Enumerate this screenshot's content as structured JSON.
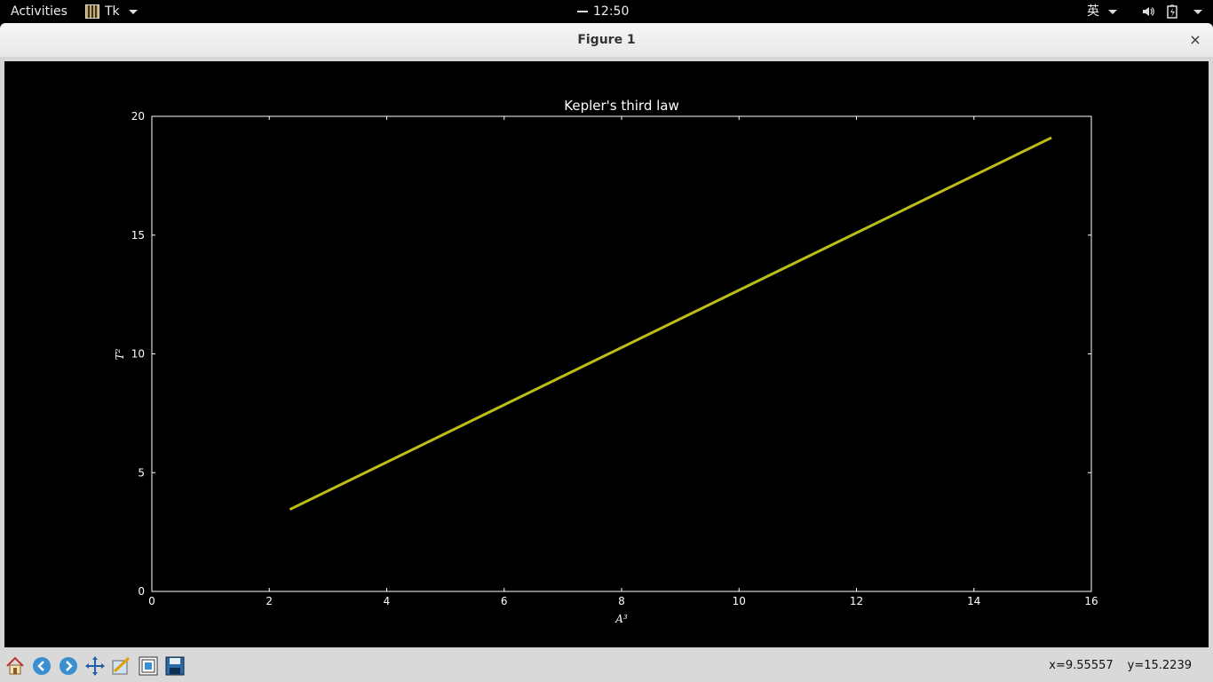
{
  "topbar": {
    "activities": "Activities",
    "app_name": "Tk",
    "clock": "12:50",
    "input_method": "英"
  },
  "window": {
    "title": "Figure 1",
    "close": "×"
  },
  "chart_data": {
    "type": "line",
    "title": "Kepler's third law",
    "xlabel": "A³",
    "ylabel": "T²",
    "xlim": [
      0,
      16
    ],
    "ylim": [
      0,
      20
    ],
    "xticks": [
      "0",
      "2",
      "4",
      "6",
      "8",
      "10",
      "12",
      "14",
      "16"
    ],
    "yticks": [
      "0",
      "5",
      "10",
      "15",
      "20"
    ],
    "grid": false,
    "background": "#000000",
    "axis_color": "#ffffff",
    "series": [
      {
        "color": "#bdbd18",
        "x": [
          2.35,
          15.32
        ],
        "y": [
          3.45,
          19.1
        ]
      }
    ]
  },
  "toolbar": {
    "icons": [
      "home-icon",
      "back-arrow-icon",
      "forward-arrow-icon",
      "pan-move-icon",
      "zoom-rect-icon",
      "configure-subplots-icon",
      "save-icon"
    ],
    "x_readout": "x=9.55557",
    "y_readout": "y=15.2239"
  }
}
